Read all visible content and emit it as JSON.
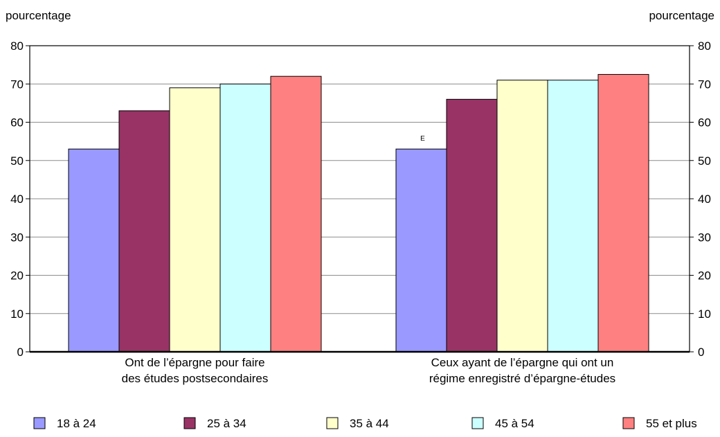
{
  "chart_data": {
    "type": "bar",
    "left_axis_label": "pourcentage",
    "right_axis_label": "pourcentage",
    "ylim": [
      0,
      80
    ],
    "yticks": [
      "0",
      "10",
      "20",
      "30",
      "40",
      "50",
      "60",
      "70",
      "80"
    ],
    "grid": true,
    "legend_position": "bottom",
    "categories": [
      {
        "line1": "Ont de l’épargne pour faire",
        "line2": "des études postsecondaires"
      },
      {
        "line1": "Ceux ayant de l’épargne qui ont un",
        "line2": "régime enregistré d’épargne-études"
      }
    ],
    "series": [
      {
        "name": "18 à 24",
        "color": "#9999ff",
        "values": [
          53,
          53
        ],
        "flags": [
          "",
          "E"
        ]
      },
      {
        "name": "25 à 34",
        "color": "#993366",
        "values": [
          63,
          66
        ],
        "flags": [
          "",
          ""
        ]
      },
      {
        "name": "35 à 44",
        "color": "#ffffcc",
        "values": [
          69,
          71
        ],
        "flags": [
          "",
          ""
        ]
      },
      {
        "name": "45 à 54",
        "color": "#ccffff",
        "values": [
          70,
          71
        ],
        "flags": [
          "",
          ""
        ]
      },
      {
        "name": "55 et plus",
        "color": "#ff8080",
        "values": [
          72,
          72.5
        ],
        "flags": [
          "",
          ""
        ]
      }
    ]
  }
}
